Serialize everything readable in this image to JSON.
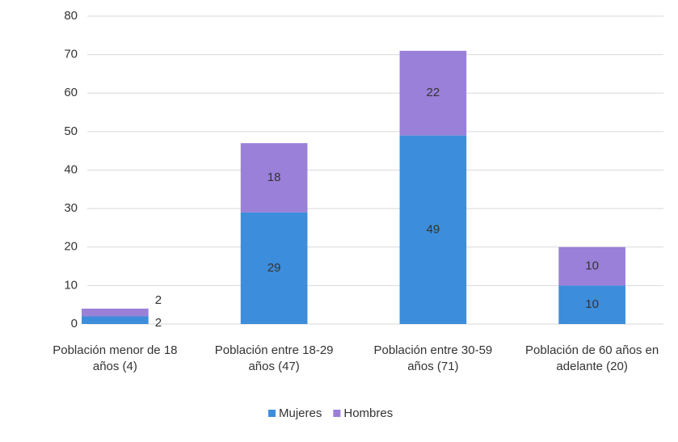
{
  "chart_data": {
    "type": "stacked_bar",
    "categories": [
      "Población menor de 18 años (4)",
      "Población entre 18-29 años (47)",
      "Población entre 30-59 años (71)",
      "Población de 60 años en adelante (20)"
    ],
    "series": [
      {
        "name": "Mujeres",
        "color": "#3c8ddb",
        "values": [
          2,
          29,
          49,
          10
        ]
      },
      {
        "name": "Hombres",
        "color": "#9a80d8",
        "values": [
          2,
          18,
          22,
          10
        ]
      }
    ],
    "ylim": [
      0,
      80
    ],
    "yticks": [
      0,
      10,
      20,
      30,
      40,
      50,
      60,
      70,
      80
    ],
    "grid": true,
    "legend": "bottom"
  }
}
